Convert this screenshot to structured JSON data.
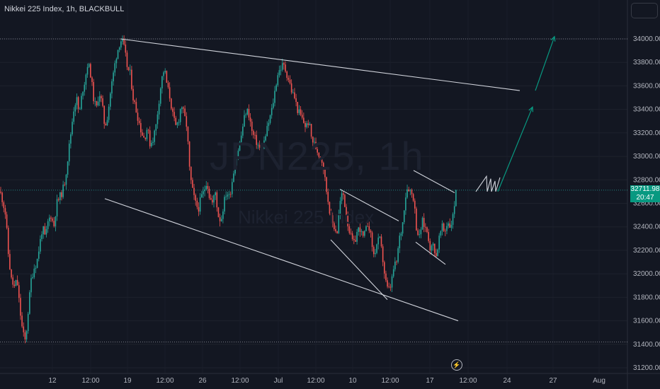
{
  "header": {
    "title": "Nikkei 225 Index, 1h, BLACKBULL"
  },
  "watermark": {
    "symbol": "JPN225, 1h",
    "name": "Nikkei 225 Index"
  },
  "price_badge": {
    "price": "32711.98",
    "countdown": "20:47"
  },
  "icons": {
    "menu": "menu-icon",
    "flash": "flash-icon"
  },
  "colors": {
    "background": "#131722",
    "up": "#26a69a",
    "down": "#ef5350",
    "drawing": "#d1d4dc",
    "arrow": "#089981",
    "axis_text": "#b2b5be"
  },
  "chart_data": {
    "type": "candlestick",
    "title": "Nikkei 225 Index, 1h, BLACKBULL",
    "x_tick_labels": [
      "12",
      "12:00",
      "19",
      "12:00",
      "26",
      "12:00",
      "Jul",
      "12:00",
      "10",
      "12:00",
      "17",
      "12:00",
      "24",
      "27",
      "Aug"
    ],
    "y_tick_labels": [
      "34000.00",
      "33800.00",
      "33600.00",
      "33400.00",
      "33200.00",
      "33000.00",
      "32800.00",
      "32600.00",
      "32400.00",
      "32200.00",
      "32000.00",
      "31800.00",
      "31600.00",
      "31400.00",
      "31200.00"
    ],
    "ylim": [
      31150,
      34300
    ],
    "grid": true,
    "last_price": 32711.98,
    "horizontal_levels": [
      34000,
      31420
    ],
    "price_path": [
      [
        0,
        32700
      ],
      [
        4,
        32620
      ],
      [
        8,
        32500
      ],
      [
        12,
        32150
      ],
      [
        16,
        31950
      ],
      [
        20,
        31880
      ],
      [
        24,
        31950
      ],
      [
        28,
        31700
      ],
      [
        32,
        31500
      ],
      [
        36,
        31420
      ],
      [
        40,
        31700
      ],
      [
        44,
        31950
      ],
      [
        48,
        32050
      ],
      [
        52,
        32100
      ],
      [
        56,
        32250
      ],
      [
        60,
        32400
      ],
      [
        64,
        32300
      ],
      [
        68,
        32450
      ],
      [
        72,
        32500
      ],
      [
        76,
        32400
      ],
      [
        80,
        32600
      ],
      [
        84,
        32650
      ],
      [
        88,
        32700
      ],
      [
        92,
        32800
      ],
      [
        96,
        33000
      ],
      [
        100,
        33200
      ],
      [
        104,
        33400
      ],
      [
        108,
        33500
      ],
      [
        112,
        33350
      ],
      [
        116,
        33550
      ],
      [
        120,
        33650
      ],
      [
        124,
        33800
      ],
      [
        128,
        33700
      ],
      [
        132,
        33500
      ],
      [
        136,
        33400
      ],
      [
        140,
        33550
      ],
      [
        144,
        33450
      ],
      [
        148,
        33250
      ],
      [
        152,
        33350
      ],
      [
        156,
        33550
      ],
      [
        160,
        33700
      ],
      [
        164,
        33850
      ],
      [
        168,
        33950
      ],
      [
        172,
        34000
      ],
      [
        176,
        33900
      ],
      [
        180,
        33750
      ],
      [
        184,
        33700
      ],
      [
        188,
        33500
      ],
      [
        192,
        33400
      ],
      [
        196,
        33300
      ],
      [
        200,
        33200
      ],
      [
        204,
        33150
      ],
      [
        208,
        33250
      ],
      [
        212,
        33100
      ],
      [
        216,
        33150
      ],
      [
        220,
        33250
      ],
      [
        224,
        33450
      ],
      [
        228,
        33650
      ],
      [
        232,
        33750
      ],
      [
        236,
        33600
      ],
      [
        240,
        33500
      ],
      [
        244,
        33350
      ],
      [
        248,
        33250
      ],
      [
        252,
        33300
      ],
      [
        256,
        33450
      ],
      [
        260,
        33350
      ],
      [
        264,
        33250
      ],
      [
        268,
        32850
      ],
      [
        272,
        32700
      ],
      [
        276,
        32600
      ],
      [
        280,
        32550
      ],
      [
        284,
        32650
      ],
      [
        288,
        32700
      ],
      [
        292,
        32800
      ],
      [
        296,
        32650
      ],
      [
        300,
        32600
      ],
      [
        304,
        32700
      ],
      [
        308,
        32500
      ],
      [
        312,
        32450
      ],
      [
        316,
        32600
      ],
      [
        320,
        32700
      ],
      [
        324,
        32650
      ],
      [
        328,
        32800
      ],
      [
        332,
        32950
      ],
      [
        336,
        33050
      ],
      [
        340,
        33150
      ],
      [
        344,
        33300
      ],
      [
        348,
        33400
      ],
      [
        352,
        33350
      ],
      [
        356,
        33200
      ],
      [
        360,
        33150
      ],
      [
        364,
        33100
      ],
      [
        368,
        33050
      ],
      [
        372,
        33100
      ],
      [
        376,
        33200
      ],
      [
        380,
        33300
      ],
      [
        384,
        33400
      ],
      [
        388,
        33550
      ],
      [
        392,
        33700
      ],
      [
        396,
        33750
      ],
      [
        400,
        33780
      ],
      [
        404,
        33720
      ],
      [
        408,
        33650
      ],
      [
        412,
        33550
      ],
      [
        416,
        33500
      ],
      [
        420,
        33400
      ],
      [
        424,
        33350
      ],
      [
        428,
        33300
      ],
      [
        432,
        33250
      ],
      [
        436,
        33300
      ],
      [
        440,
        33150
      ],
      [
        444,
        33100
      ],
      [
        448,
        33050
      ],
      [
        452,
        33000
      ],
      [
        456,
        32950
      ],
      [
        460,
        32750
      ],
      [
        464,
        32600
      ],
      [
        468,
        32450
      ],
      [
        472,
        32400
      ],
      [
        476,
        32350
      ],
      [
        480,
        32600
      ],
      [
        484,
        32700
      ],
      [
        488,
        32550
      ],
      [
        492,
        32400
      ],
      [
        496,
        32300
      ],
      [
        500,
        32250
      ],
      [
        504,
        32350
      ],
      [
        508,
        32400
      ],
      [
        512,
        32300
      ],
      [
        516,
        32350
      ],
      [
        520,
        32450
      ],
      [
        524,
        32300
      ],
      [
        528,
        32150
      ],
      [
        532,
        32250
      ],
      [
        536,
        32300
      ],
      [
        540,
        32150
      ],
      [
        544,
        31950
      ],
      [
        548,
        31850
      ],
      [
        552,
        31900
      ],
      [
        556,
        32050
      ],
      [
        560,
        32100
      ],
      [
        564,
        32300
      ],
      [
        568,
        32400
      ],
      [
        572,
        32650
      ],
      [
        576,
        32750
      ],
      [
        580,
        32700
      ],
      [
        584,
        32650
      ],
      [
        588,
        32400
      ],
      [
        592,
        32300
      ],
      [
        596,
        32450
      ],
      [
        600,
        32400
      ],
      [
        604,
        32350
      ],
      [
        608,
        32200
      ],
      [
        612,
        32250
      ],
      [
        616,
        32150
      ],
      [
        620,
        32300
      ],
      [
        624,
        32400
      ],
      [
        628,
        32350
      ],
      [
        632,
        32450
      ],
      [
        636,
        32400
      ],
      [
        640,
        32500
      ],
      [
        644,
        32712
      ]
    ],
    "annotations": {
      "trend_lines": [
        {
          "from": [
            170,
            34000
          ],
          "to": [
            734,
            33560
          ]
        },
        {
          "from": [
            148,
            32640
          ],
          "to": [
            647,
            31600
          ]
        },
        {
          "from": [
            480,
            32720
          ],
          "to": [
            563,
            32450
          ]
        },
        {
          "from": [
            467,
            32290
          ],
          "to": [
            547,
            31780
          ]
        },
        {
          "from": [
            584,
            32880
          ],
          "to": [
            642,
            32690
          ]
        },
        {
          "from": [
            587,
            32270
          ],
          "to": [
            629,
            32080
          ]
        }
      ],
      "projection_zigzag": [
        [
          672,
          32700
        ],
        [
          687,
          32830
        ],
        [
          688,
          32700
        ],
        [
          693,
          32810
        ],
        [
          694,
          32700
        ],
        [
          699,
          32790
        ],
        [
          700,
          32700
        ],
        [
          706,
          32820
        ]
      ],
      "projection_arrows": [
        {
          "from": [
            703,
            32700
          ],
          "to": [
            752,
            33420
          ]
        },
        {
          "from": [
            756,
            33560
          ],
          "to": [
            783,
            34020
          ]
        }
      ]
    }
  }
}
